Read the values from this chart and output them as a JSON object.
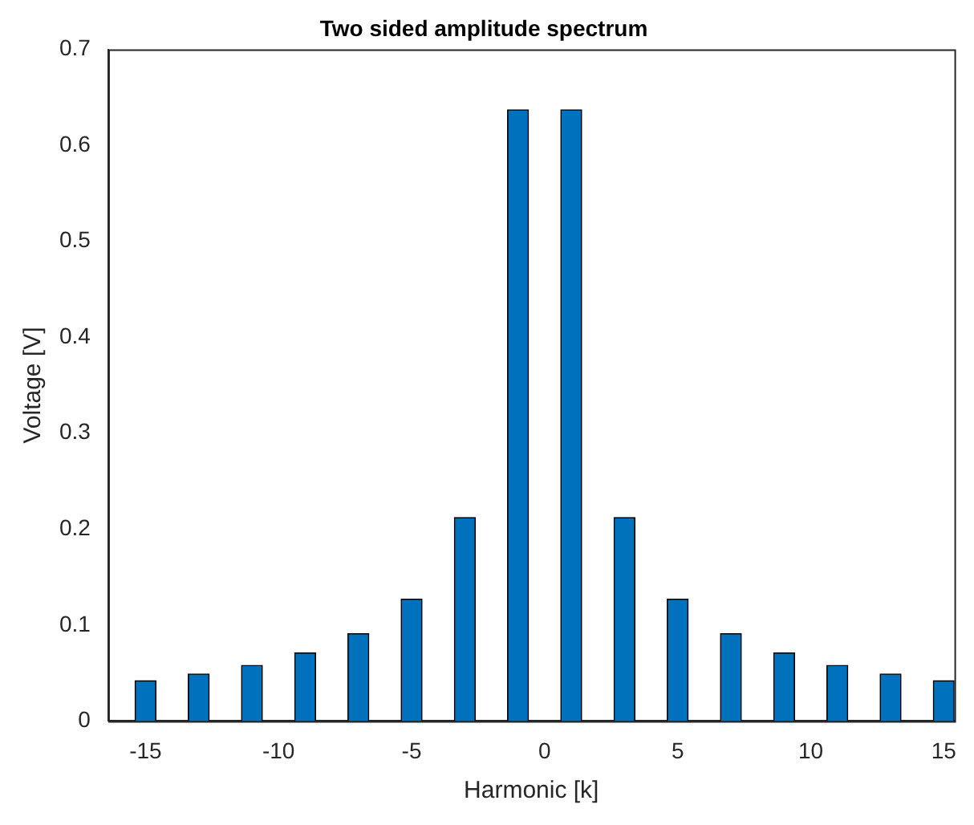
{
  "chart_data": {
    "type": "bar",
    "title": "Two sided amplitude spectrum",
    "xlabel": "Harmonic [k]",
    "ylabel": "Voltage [V]",
    "x": [
      -15,
      -13,
      -11,
      -9,
      -7,
      -5,
      -3,
      -1,
      1,
      3,
      5,
      7,
      9,
      11,
      13,
      15
    ],
    "values": [
      0.042,
      0.049,
      0.058,
      0.071,
      0.091,
      0.127,
      0.212,
      0.637,
      0.637,
      0.212,
      0.127,
      0.091,
      0.071,
      0.058,
      0.049,
      0.042
    ],
    "color": "#0072bd",
    "xlim": [
      -16.4,
      15.4
    ],
    "xticks": [
      -15,
      -10,
      -5,
      0,
      5,
      10,
      15
    ],
    "ylim": [
      0,
      0.7
    ],
    "yticks": [
      0,
      0.1,
      0.2,
      0.3,
      0.4,
      0.5,
      0.6,
      0.7
    ],
    "grid": false,
    "legend": false
  }
}
